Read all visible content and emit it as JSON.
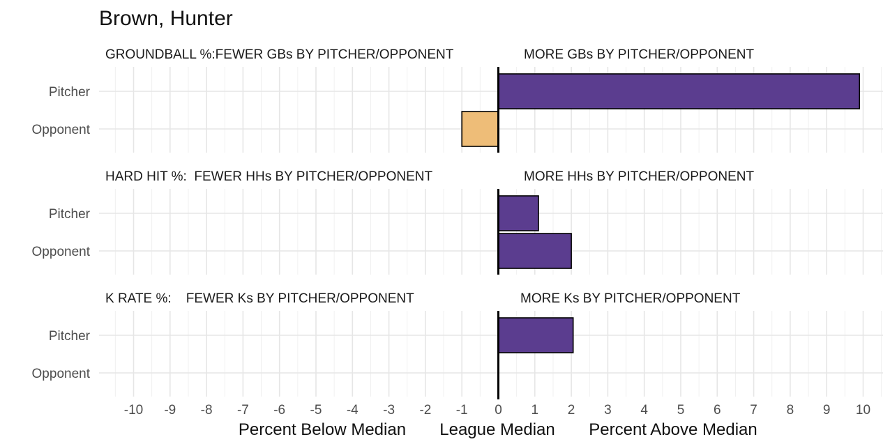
{
  "chart_data": {
    "type": "bar",
    "orientation": "horizontal",
    "title": "Brown, Hunter",
    "categories": [
      "Pitcher",
      "Opponent"
    ],
    "xlim": [
      -11,
      10.5
    ],
    "x_ticks": [
      -10,
      -9,
      -8,
      -7,
      -6,
      -5,
      -4,
      -3,
      -2,
      -1,
      0,
      1,
      2,
      3,
      4,
      5,
      6,
      7,
      8,
      9,
      10
    ],
    "x_captions": [
      "Percent Below Median",
      "League Median",
      "Percent Above Median"
    ],
    "grid": true,
    "colors": {
      "positive": "#5b3d8f",
      "negative": "#eebd78",
      "median_line": "#000000"
    },
    "panels": [
      {
        "left_label": "GROUNDBALL %:FEWER GBs BY PITCHER/OPPONENT",
        "right_label": "MORE GBs BY PITCHER/OPPONENT",
        "values": {
          "Pitcher": 9.9,
          "Opponent": -1.0
        }
      },
      {
        "left_label": "HARD HIT %:  FEWER HHs BY PITCHER/OPPONENT",
        "right_label": "MORE HHs BY PITCHER/OPPONENT",
        "values": {
          "Pitcher": 1.1,
          "Opponent": 2.0
        }
      },
      {
        "left_label": "K RATE %:    FEWER Ks BY PITCHER/OPPONENT",
        "right_label": "MORE Ks BY PITCHER/OPPONENT",
        "values": {
          "Pitcher": 2.05,
          "Opponent": null
        }
      }
    ]
  }
}
